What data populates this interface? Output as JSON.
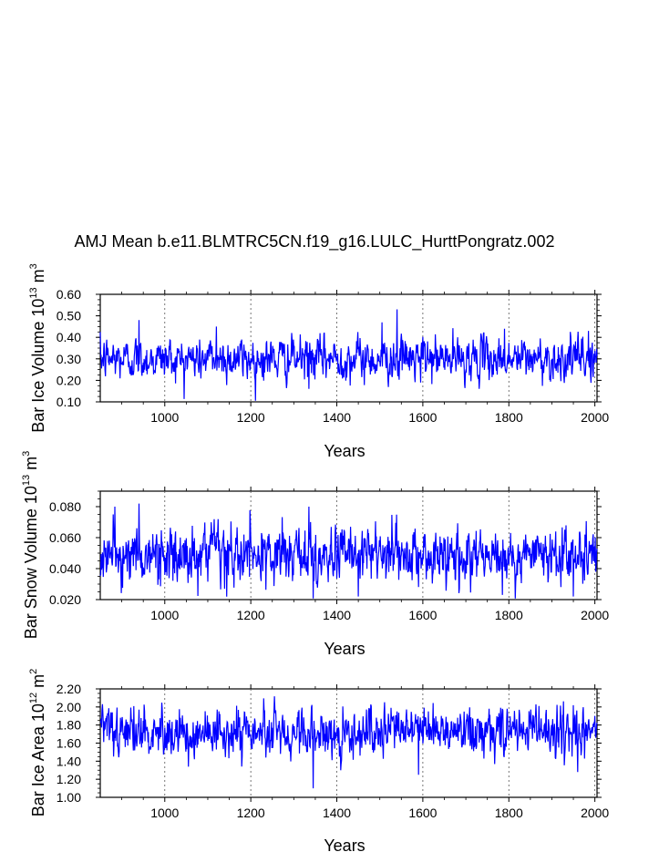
{
  "chart_data": {
    "type": "line",
    "title": "AMJ Mean b.e11.BLMTRC5CN.f19_g16.LULC_HurttPongratz.002",
    "x_range": [
      850,
      2005
    ],
    "x_start": 850,
    "x_end": 2005,
    "xlabel": "Years",
    "x_ticks": [
      1000,
      1200,
      1400,
      1600,
      1800,
      2000
    ],
    "x_tick_labels": [
      "1000",
      "1200",
      "1400",
      "1600",
      "1800",
      "2000"
    ],
    "vertical_dashed_gridlines_at": [
      1000,
      1200,
      1400,
      1600,
      1800,
      2000
    ],
    "line_color": "#0000ff",
    "panels": [
      {
        "id": "ice-volume",
        "ylabel_main": "Bar Ice Volume 10",
        "ylabel_exp": "13",
        "ylabel_unit": " m",
        "ylabel_unit_exp": "3",
        "ylim": [
          0.1,
          0.6
        ],
        "y_ticks": [
          0.1,
          0.2,
          0.3,
          0.4,
          0.5,
          0.6
        ],
        "y_tick_labels": [
          "0.10",
          "0.20",
          "0.30",
          "0.40",
          "0.50",
          "0.60"
        ],
        "mean": 0.3,
        "amplitude": 0.045,
        "spikes": [
          [
            940,
            0.48
          ],
          [
            1120,
            0.45
          ],
          [
            1335,
            0.16
          ],
          [
            1505,
            0.47
          ],
          [
            1540,
            0.53
          ],
          [
            1595,
            0.19
          ],
          [
            1790,
            0.44
          ],
          [
            1985,
            0.43
          ]
        ]
      },
      {
        "id": "snow-volume",
        "ylabel_main": "Bar Snow Volume 10",
        "ylabel_exp": "13",
        "ylabel_unit": " m",
        "ylabel_unit_exp": "3",
        "ylim": [
          0.02,
          0.09
        ],
        "y_ticks": [
          0.02,
          0.04,
          0.06,
          0.08
        ],
        "y_tick_labels": [
          "0.020",
          "0.040",
          "0.060",
          "0.080"
        ],
        "mean": 0.048,
        "amplitude": 0.0085,
        "spikes": [
          [
            880,
            0.075
          ],
          [
            940,
            0.082
          ],
          [
            1335,
            0.08
          ],
          [
            1345,
            0.02
          ],
          [
            1450,
            0.022
          ],
          [
            1785,
            0.023
          ],
          [
            1950,
            0.022
          ]
        ]
      },
      {
        "id": "ice-area",
        "ylabel_main": "Bar Ice Area 10",
        "ylabel_exp": "12",
        "ylabel_unit": " m",
        "ylabel_unit_exp": "2",
        "ylim": [
          1.0,
          2.2
        ],
        "y_ticks": [
          1.0,
          1.2,
          1.4,
          1.6,
          1.8,
          2.0,
          2.2
        ],
        "y_tick_labels": [
          "1.00",
          "1.20",
          "1.40",
          "1.60",
          "1.80",
          "2.00",
          "2.20"
        ],
        "mean": 1.72,
        "amplitude": 0.12,
        "spikes": [
          [
            940,
            1.97
          ],
          [
            1345,
            1.1
          ],
          [
            1540,
            1.95
          ],
          [
            1590,
            1.25
          ],
          [
            1870,
            2.01
          ],
          [
            1950,
            2.02
          ],
          [
            1960,
            1.28
          ]
        ]
      }
    ]
  }
}
